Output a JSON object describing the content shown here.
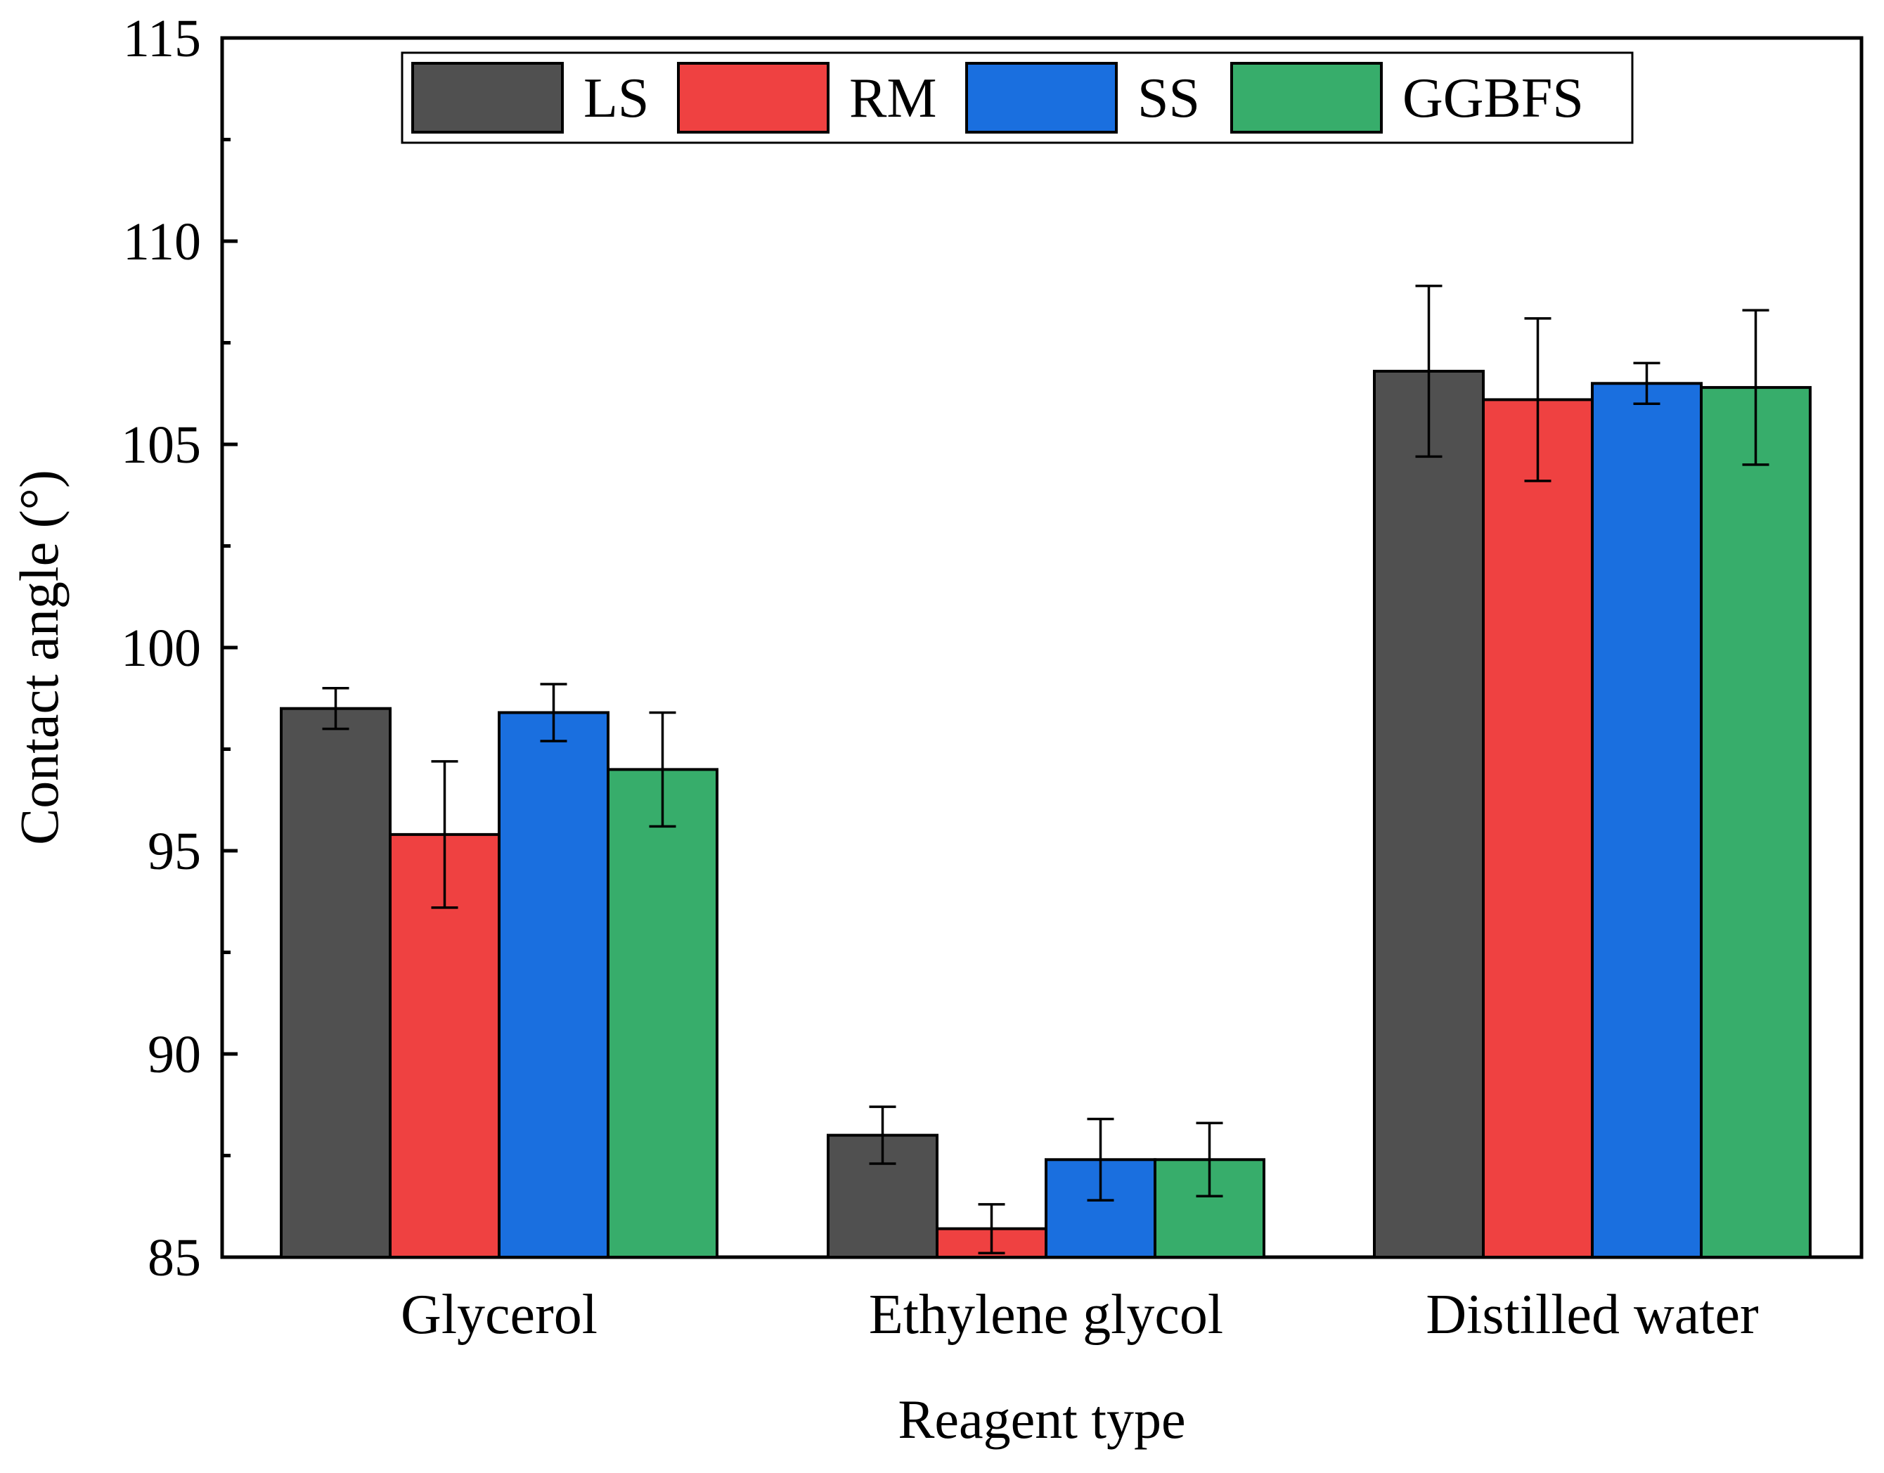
{
  "chart_data": {
    "type": "bar",
    "xlabel": "Reagent type",
    "ylabel": "Contact angle (°)",
    "ylim": [
      85,
      115
    ],
    "yticks": [
      85,
      90,
      95,
      100,
      105,
      110,
      115
    ],
    "categories": [
      "Glycerol",
      "Ethylene glycol",
      "Distilled water"
    ],
    "legend_position": "top",
    "series": [
      {
        "name": "LS",
        "color": "#505050",
        "values": [
          98.5,
          88.0,
          106.8
        ],
        "errors": [
          0.5,
          0.7,
          2.1
        ]
      },
      {
        "name": "RM",
        "color": "#ef4141",
        "values": [
          95.4,
          85.7,
          106.1
        ],
        "errors": [
          1.8,
          0.6,
          2.0
        ]
      },
      {
        "name": "SS",
        "color": "#1a6fdf",
        "values": [
          98.4,
          87.4,
          106.5
        ],
        "errors": [
          0.7,
          1.0,
          0.5
        ]
      },
      {
        "name": "GGBFS",
        "color": "#37ad6b",
        "values": [
          97.0,
          87.4,
          106.4
        ],
        "errors": [
          1.4,
          0.9,
          1.9
        ]
      }
    ]
  }
}
